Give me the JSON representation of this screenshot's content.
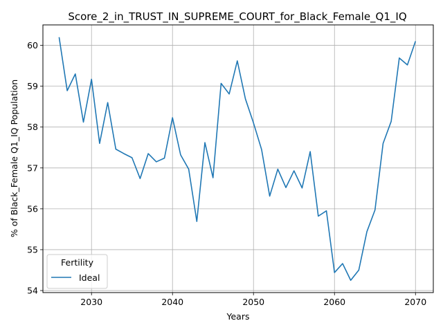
{
  "chart_data": {
    "type": "line",
    "title": "Score_2_in_TRUST_IN_SUPREME_COURT_for_Black_Female_Q1_IQ",
    "xlabel": "Years",
    "ylabel": "% of Black_Female Q1_IQ Population",
    "xlim": [
      2024,
      2072.2
    ],
    "ylim": [
      53.95,
      60.5
    ],
    "xticks": [
      2030,
      2040,
      2050,
      2060,
      2070
    ],
    "yticks": [
      54,
      55,
      56,
      57,
      58,
      59,
      60
    ],
    "grid": true,
    "legend": {
      "title": "Fertility",
      "position": "lower-left"
    },
    "series": [
      {
        "name": "Ideal",
        "color": "#1f77b4",
        "x": [
          2026,
          2027,
          2028,
          2029,
          2030,
          2031,
          2032,
          2033,
          2034,
          2035,
          2036,
          2037,
          2038,
          2039,
          2040,
          2041,
          2042,
          2043,
          2044,
          2045,
          2046,
          2047,
          2048,
          2049,
          2050,
          2051,
          2052,
          2053,
          2054,
          2055,
          2056,
          2057,
          2058,
          2059,
          2060,
          2061,
          2062,
          2063,
          2064,
          2065,
          2066,
          2067,
          2068,
          2069,
          2070
        ],
        "values": [
          60.2,
          58.89,
          59.3,
          58.12,
          59.17,
          57.6,
          58.6,
          57.46,
          57.35,
          57.25,
          56.74,
          57.35,
          57.15,
          57.24,
          58.23,
          57.32,
          56.97,
          55.69,
          57.62,
          56.76,
          59.07,
          58.81,
          59.62,
          58.69,
          58.1,
          57.45,
          56.31,
          56.97,
          56.52,
          56.93,
          56.51,
          57.4,
          55.82,
          55.95,
          54.44,
          54.66,
          54.25,
          54.5,
          55.44,
          55.97,
          57.6,
          58.14,
          59.69,
          59.52,
          60.1
        ]
      }
    ]
  }
}
